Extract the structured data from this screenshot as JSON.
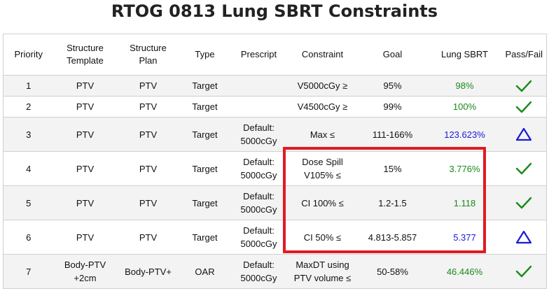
{
  "title": "RTOG 0813 Lung SBRT Constraints",
  "headers": [
    "Priority",
    "Structure Template",
    "Structure Plan",
    "Type",
    "Prescript",
    "Constraint",
    "Goal",
    "Lung SBRT",
    "Pass/Fail"
  ],
  "rows": [
    {
      "priority": "1",
      "template": "PTV",
      "plan": "PTV",
      "type": "Target",
      "prescript": "",
      "constraint": "V5000cGy ≥",
      "goal": "95%",
      "value": "98%",
      "value_color": "green",
      "status": "pass"
    },
    {
      "priority": "2",
      "template": "PTV",
      "plan": "PTV",
      "type": "Target",
      "prescript": "",
      "constraint": "V4500cGy ≥",
      "goal": "99%",
      "value": "100%",
      "value_color": "green",
      "status": "pass"
    },
    {
      "priority": "3",
      "template": "PTV",
      "plan": "PTV",
      "type": "Target",
      "prescript": "Default:\n5000cGy",
      "constraint": "Max ≤",
      "goal": "111-166%",
      "value": "123.623%",
      "value_color": "blue",
      "status": "warning"
    },
    {
      "priority": "4",
      "template": "PTV",
      "plan": "PTV",
      "type": "Target",
      "prescript": "Default:\n5000cGy",
      "constraint": "Dose Spill\nV105% ≤",
      "goal": "15%",
      "value": "3.776%",
      "value_color": "green",
      "status": "pass"
    },
    {
      "priority": "5",
      "template": "PTV",
      "plan": "PTV",
      "type": "Target",
      "prescript": "Default:\n5000cGy",
      "constraint": "CI 100% ≤",
      "goal": "1.2-1.5",
      "value": "1.118",
      "value_color": "green",
      "status": "pass"
    },
    {
      "priority": "6",
      "template": "PTV",
      "plan": "PTV",
      "type": "Target",
      "prescript": "Default:\n5000cGy",
      "constraint": "CI 50% ≤",
      "goal": "4.813-5.857",
      "value": "5.377",
      "value_color": "blue",
      "status": "warning"
    },
    {
      "priority": "7",
      "template": "Body-PTV\n+2cm",
      "plan": "Body-PTV+",
      "type": "OAR",
      "prescript": "Default:\n5000cGy",
      "constraint": "MaxDT using\nPTV volume ≤",
      "goal": "50-58%",
      "value": "46.446%",
      "value_color": "green",
      "status": "pass"
    }
  ],
  "colors": {
    "pass": "#1a8a1a",
    "warning": "#1a1ad8",
    "callout": "#e01b22"
  }
}
